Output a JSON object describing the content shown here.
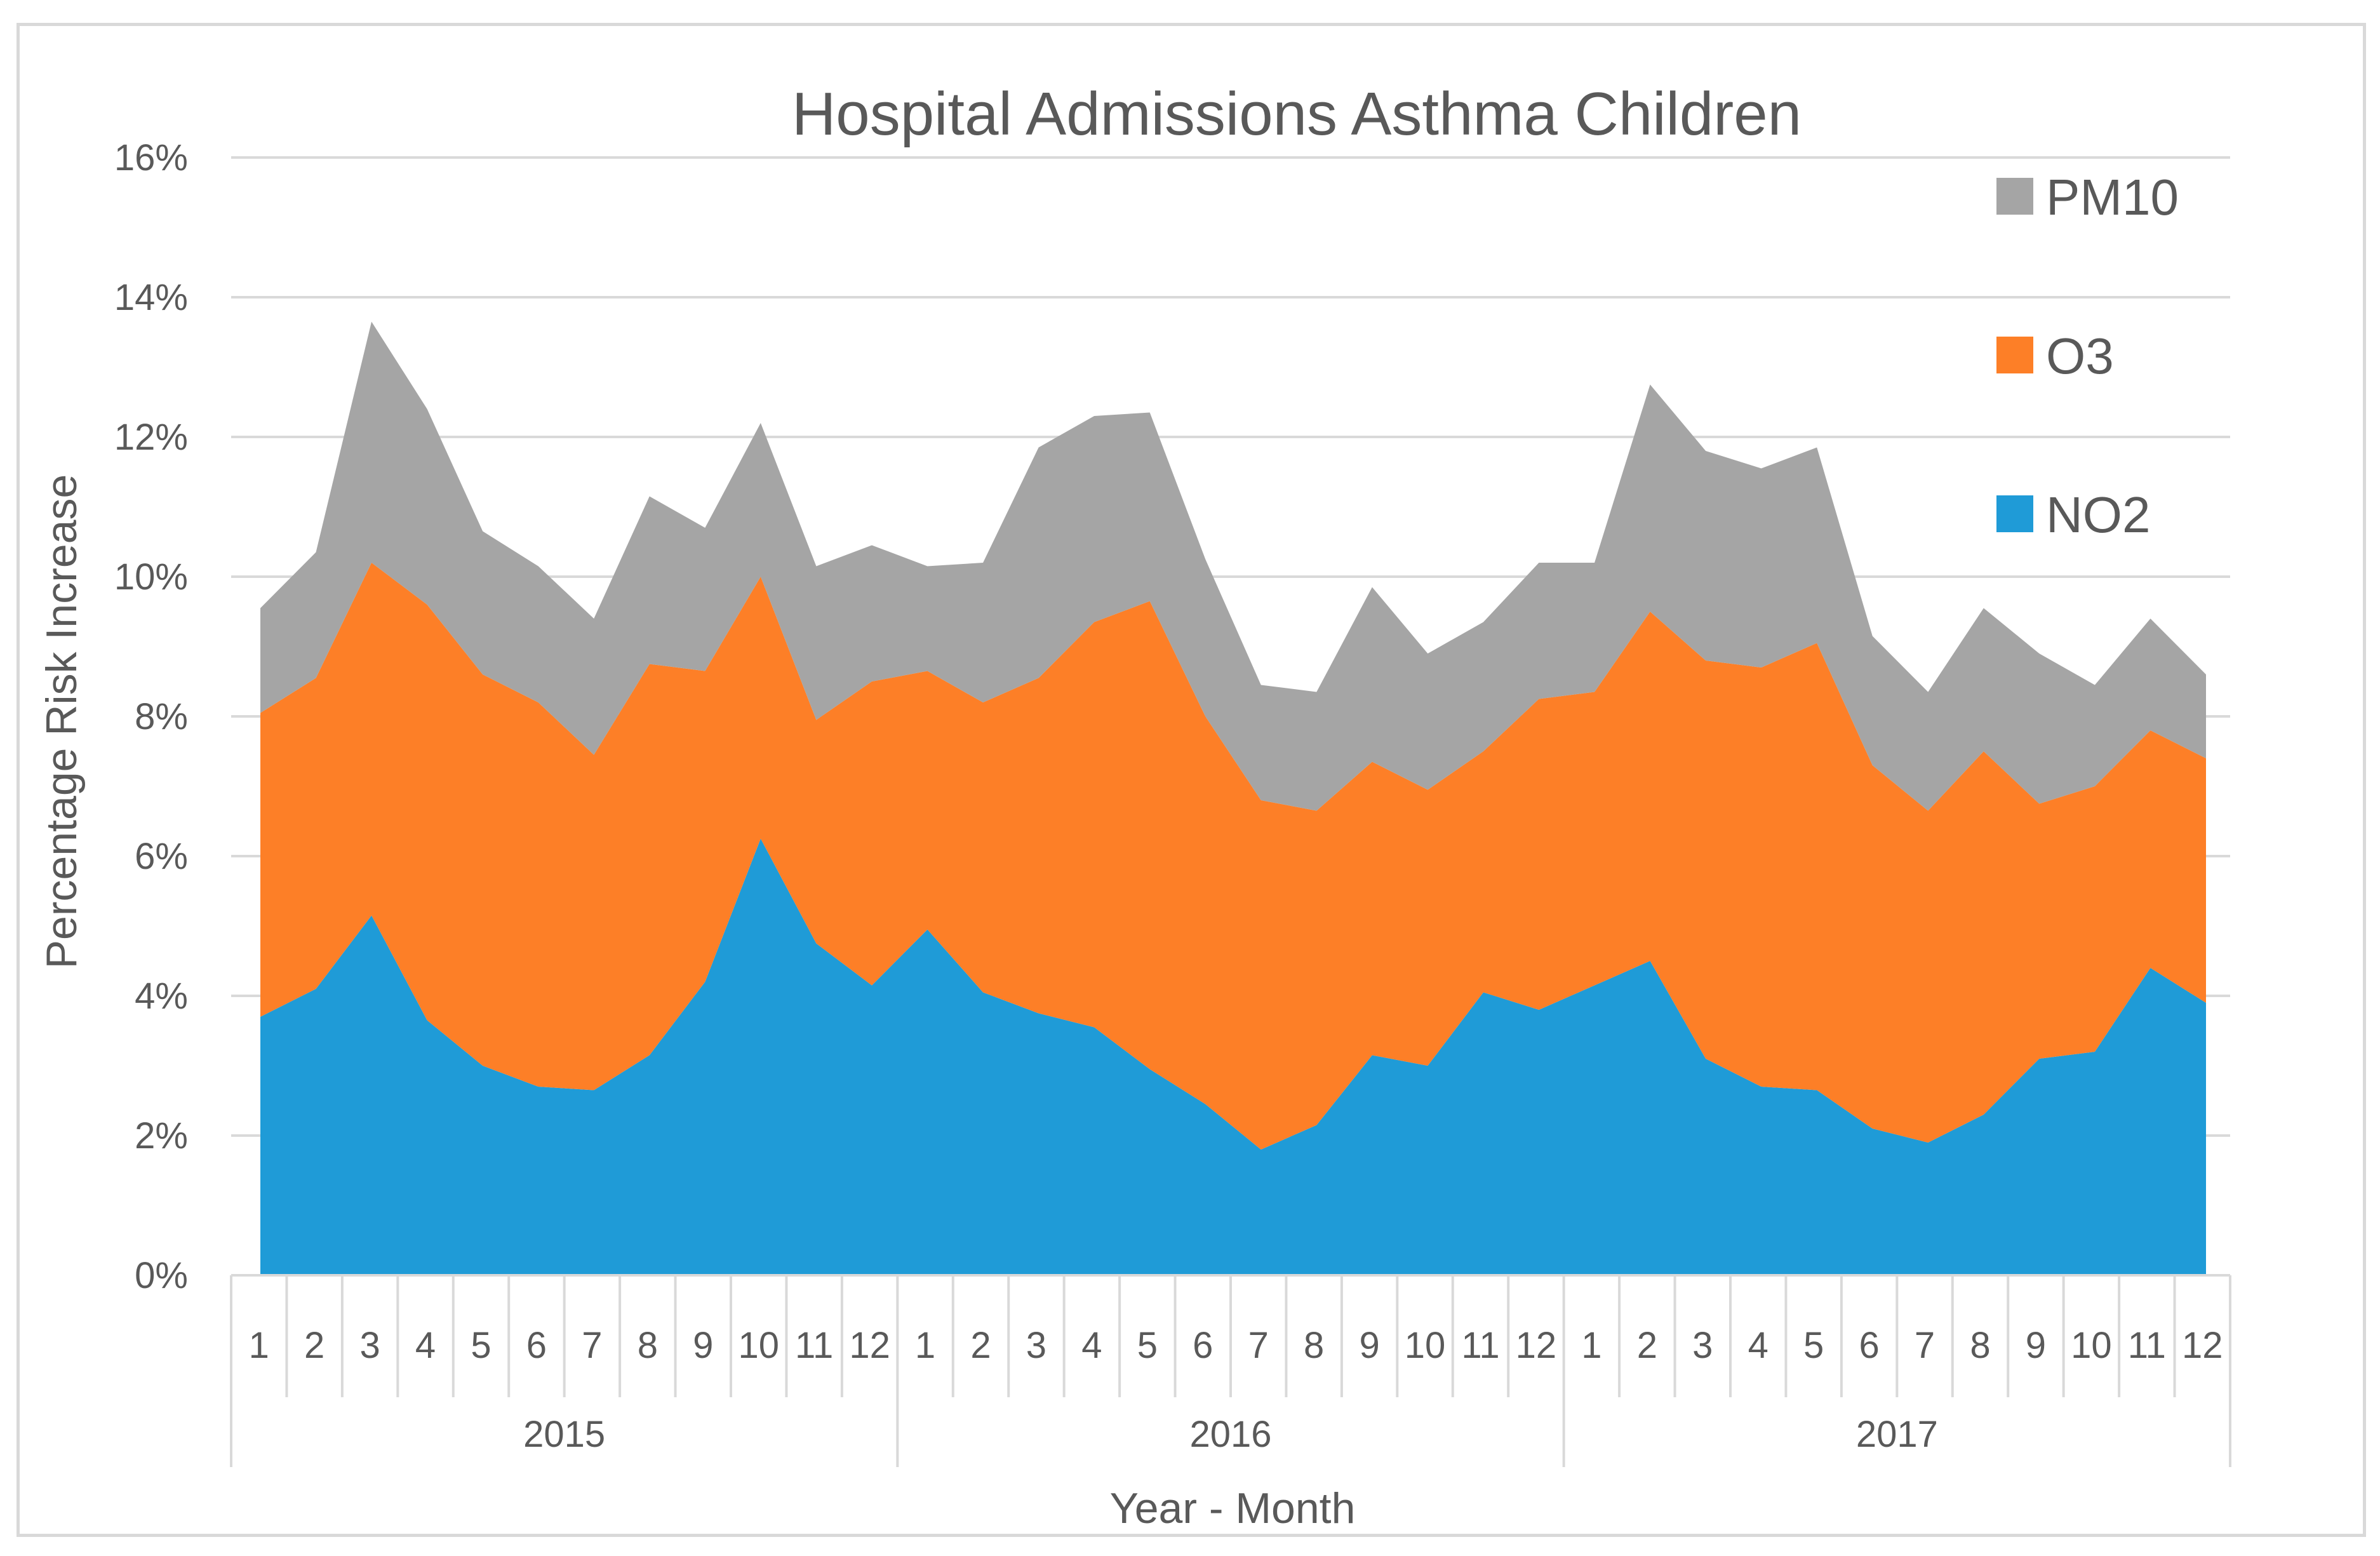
{
  "chart_data": {
    "type": "area",
    "stacked": true,
    "title": "Hospital Admissions Asthma Children",
    "xlabel": "Year - Month",
    "ylabel": "Percentage Risk Increase",
    "ylim": [
      0,
      16
    ],
    "yticks": [
      0,
      2,
      4,
      6,
      8,
      10,
      12,
      14,
      16
    ],
    "ytick_labels": [
      "0%",
      "2%",
      "4%",
      "6%",
      "8%",
      "10%",
      "12%",
      "14%",
      "16%"
    ],
    "grid": true,
    "legend_position": "top-right",
    "years": [
      "2015",
      "2016",
      "2017"
    ],
    "months": [
      "1",
      "2",
      "3",
      "4",
      "5",
      "6",
      "7",
      "8",
      "9",
      "10",
      "11",
      "12"
    ],
    "series": [
      {
        "name": "NO2",
        "color": "#1f9bd7",
        "values": [
          3.7,
          4.1,
          5.15,
          3.65,
          3.0,
          2.7,
          2.65,
          3.15,
          4.2,
          6.25,
          4.75,
          4.15,
          4.95,
          4.05,
          3.75,
          3.55,
          2.95,
          2.45,
          1.8,
          2.15,
          3.15,
          3.0,
          4.05,
          3.8,
          4.15,
          4.5,
          3.1,
          2.7,
          2.65,
          2.1,
          1.9,
          2.3,
          3.1,
          3.2,
          4.4,
          3.9
        ]
      },
      {
        "name": "O3",
        "color": "#fd7f27",
        "values": [
          4.35,
          4.45,
          5.05,
          5.95,
          5.6,
          5.5,
          4.8,
          5.6,
          4.45,
          3.75,
          3.2,
          4.35,
          3.7,
          4.15,
          4.8,
          5.8,
          6.7,
          5.55,
          5.0,
          4.5,
          4.2,
          3.95,
          3.45,
          4.45,
          4.2,
          5.0,
          5.7,
          6.0,
          6.4,
          5.2,
          4.75,
          5.2,
          3.65,
          3.8,
          3.4,
          3.5
        ]
      },
      {
        "name": "PM10",
        "color": "#a5a5a5",
        "values": [
          1.5,
          1.8,
          3.45,
          2.8,
          2.05,
          1.95,
          1.95,
          2.4,
          2.05,
          2.2,
          2.2,
          1.95,
          1.5,
          2.0,
          3.3,
          2.95,
          2.7,
          2.25,
          1.65,
          1.7,
          2.5,
          1.95,
          1.85,
          1.95,
          1.85,
          3.25,
          3.0,
          2.85,
          2.8,
          1.85,
          1.7,
          2.05,
          2.15,
          1.45,
          1.6,
          1.2
        ]
      }
    ],
    "legend": [
      "PM10",
      "O3",
      "NO2"
    ]
  }
}
